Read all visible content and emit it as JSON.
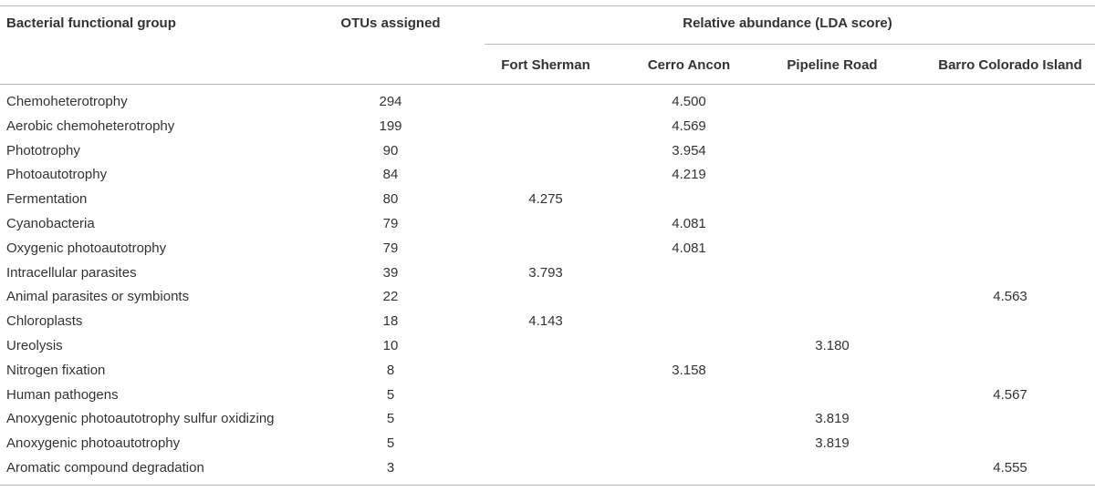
{
  "table": {
    "headers": {
      "group": "Bacterial functional group",
      "otus": "OTUs assigned",
      "relative_abundance": "Relative abundance (LDA score)",
      "sites": [
        "Fort Sherman",
        "Cerro Ancon",
        "Pipeline Road",
        "Barro Colorado Island"
      ]
    },
    "rows": [
      {
        "group": "Chemoheterotrophy",
        "otus": "294",
        "values": [
          "",
          "4.500",
          "",
          ""
        ]
      },
      {
        "group": "Aerobic chemoheterotrophy",
        "otus": "199",
        "values": [
          "",
          "4.569",
          "",
          ""
        ]
      },
      {
        "group": "Phototrophy",
        "otus": "90",
        "values": [
          "",
          "3.954",
          "",
          ""
        ]
      },
      {
        "group": "Photoautotrophy",
        "otus": "84",
        "values": [
          "",
          "4.219",
          "",
          ""
        ]
      },
      {
        "group": "Fermentation",
        "otus": "80",
        "values": [
          "4.275",
          "",
          "",
          ""
        ]
      },
      {
        "group": "Cyanobacteria",
        "otus": "79",
        "values": [
          "",
          "4.081",
          "",
          ""
        ]
      },
      {
        "group": "Oxygenic photoautotrophy",
        "otus": "79",
        "values": [
          "",
          "4.081",
          "",
          ""
        ]
      },
      {
        "group": "Intracellular parasites",
        "otus": "39",
        "values": [
          "3.793",
          "",
          "",
          ""
        ]
      },
      {
        "group": "Animal parasites or symbionts",
        "otus": "22",
        "values": [
          "",
          "",
          "",
          "4.563"
        ]
      },
      {
        "group": "Chloroplasts",
        "otus": "18",
        "values": [
          "4.143",
          "",
          "",
          ""
        ]
      },
      {
        "group": "Ureolysis",
        "otus": "10",
        "values": [
          "",
          "",
          "3.180",
          ""
        ]
      },
      {
        "group": "Nitrogen fixation",
        "otus": "8",
        "values": [
          "",
          "3.158",
          "",
          ""
        ]
      },
      {
        "group": "Human pathogens",
        "otus": "5",
        "values": [
          "",
          "",
          "",
          "4.567"
        ]
      },
      {
        "group": "Anoxygenic photoautotrophy sulfur oxidizing",
        "otus": "5",
        "values": [
          "",
          "",
          "3.819",
          ""
        ]
      },
      {
        "group": "Anoxygenic photoautotrophy",
        "otus": "5",
        "values": [
          "",
          "",
          "3.819",
          ""
        ]
      },
      {
        "group": "Aromatic compound degradation",
        "otus": "3",
        "values": [
          "",
          "",
          "",
          "4.555"
        ]
      }
    ]
  }
}
